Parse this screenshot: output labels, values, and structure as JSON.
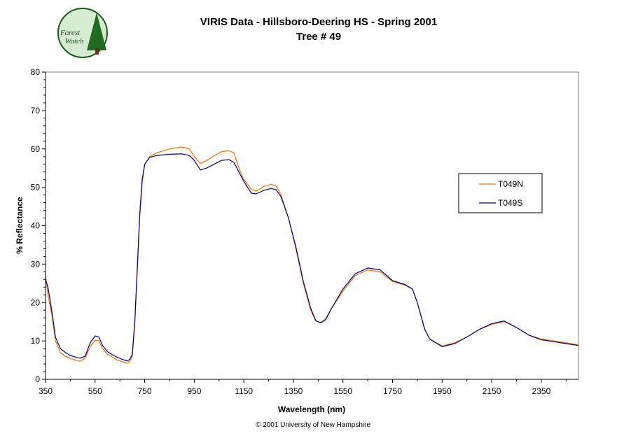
{
  "logo": {
    "line1": "Forest",
    "line2": "Watch"
  },
  "footer": "© 2001 University of New Hampshire",
  "chart_data": {
    "type": "line",
    "title": "VIRIS Data - Hillsboro-Deering HS - Spring 2001",
    "subtitle": "Tree # 49",
    "xlabel": "Wavelength (nm)",
    "ylabel": "% Reflectance",
    "xlim": [
      350,
      2500
    ],
    "ylim": [
      0,
      80
    ],
    "xticks": [
      350,
      550,
      750,
      950,
      1150,
      1350,
      1550,
      1750,
      1950,
      2150,
      2350
    ],
    "yticks": [
      0,
      10,
      20,
      30,
      40,
      50,
      60,
      70,
      80
    ],
    "grid": false,
    "legend_position": "right",
    "series": [
      {
        "name": "T049N",
        "color": "#f07000",
        "points": [
          [
            350,
            27
          ],
          [
            360,
            22
          ],
          [
            375,
            17
          ],
          [
            390,
            10
          ],
          [
            410,
            7
          ],
          [
            430,
            6
          ],
          [
            450,
            5.5
          ],
          [
            470,
            5
          ],
          [
            490,
            4.7
          ],
          [
            510,
            5.5
          ],
          [
            530,
            8.5
          ],
          [
            550,
            10.2
          ],
          [
            565,
            10
          ],
          [
            580,
            8
          ],
          [
            600,
            6.5
          ],
          [
            620,
            5.8
          ],
          [
            640,
            5
          ],
          [
            660,
            4.6
          ],
          [
            680,
            4.2
          ],
          [
            690,
            4.7
          ],
          [
            700,
            6
          ],
          [
            710,
            14
          ],
          [
            720,
            28
          ],
          [
            730,
            42
          ],
          [
            740,
            51
          ],
          [
            750,
            56
          ],
          [
            770,
            58
          ],
          [
            800,
            59
          ],
          [
            850,
            60
          ],
          [
            900,
            60.5
          ],
          [
            930,
            60
          ],
          [
            950,
            58
          ],
          [
            975,
            56.2
          ],
          [
            1000,
            57
          ],
          [
            1030,
            58.2
          ],
          [
            1060,
            59.3
          ],
          [
            1090,
            59.5
          ],
          [
            1110,
            59
          ],
          [
            1130,
            55
          ],
          [
            1150,
            52
          ],
          [
            1180,
            49.5
          ],
          [
            1200,
            49
          ],
          [
            1230,
            50.2
          ],
          [
            1260,
            50.8
          ],
          [
            1280,
            50.4
          ],
          [
            1300,
            48
          ],
          [
            1330,
            42
          ],
          [
            1360,
            34
          ],
          [
            1390,
            25
          ],
          [
            1420,
            18
          ],
          [
            1440,
            15.2
          ],
          [
            1460,
            14.8
          ],
          [
            1480,
            15.8
          ],
          [
            1500,
            18
          ],
          [
            1550,
            23
          ],
          [
            1600,
            27
          ],
          [
            1650,
            28.5
          ],
          [
            1700,
            28
          ],
          [
            1750,
            25.5
          ],
          [
            1800,
            24.5
          ],
          [
            1830,
            23.5
          ],
          [
            1850,
            20
          ],
          [
            1880,
            13
          ],
          [
            1900,
            10.5
          ],
          [
            1950,
            8.7
          ],
          [
            2000,
            9.5
          ],
          [
            2050,
            11
          ],
          [
            2100,
            13
          ],
          [
            2150,
            14.3
          ],
          [
            2200,
            15
          ],
          [
            2250,
            13.5
          ],
          [
            2300,
            11.5
          ],
          [
            2350,
            10.5
          ],
          [
            2400,
            10
          ],
          [
            2450,
            9.5
          ],
          [
            2500,
            9
          ]
        ]
      },
      {
        "name": "T049S",
        "color": "#000080",
        "points": [
          [
            350,
            26
          ],
          [
            360,
            24
          ],
          [
            375,
            18
          ],
          [
            390,
            11
          ],
          [
            410,
            8
          ],
          [
            430,
            7
          ],
          [
            450,
            6.2
          ],
          [
            470,
            5.8
          ],
          [
            490,
            5.5
          ],
          [
            510,
            6
          ],
          [
            530,
            9.5
          ],
          [
            550,
            11.3
          ],
          [
            565,
            11
          ],
          [
            580,
            8.8
          ],
          [
            600,
            7.2
          ],
          [
            620,
            6.4
          ],
          [
            640,
            5.7
          ],
          [
            660,
            5.2
          ],
          [
            680,
            4.8
          ],
          [
            690,
            5.2
          ],
          [
            700,
            6.5
          ],
          [
            710,
            15
          ],
          [
            720,
            29
          ],
          [
            730,
            43
          ],
          [
            740,
            52
          ],
          [
            750,
            56
          ],
          [
            770,
            57.8
          ],
          [
            800,
            58.3
          ],
          [
            850,
            58.6
          ],
          [
            900,
            58.7
          ],
          [
            930,
            58.3
          ],
          [
            950,
            57
          ],
          [
            975,
            54.5
          ],
          [
            1000,
            55
          ],
          [
            1030,
            56
          ],
          [
            1060,
            57
          ],
          [
            1090,
            57.2
          ],
          [
            1110,
            56.5
          ],
          [
            1130,
            54
          ],
          [
            1150,
            51.5
          ],
          [
            1180,
            48.5
          ],
          [
            1200,
            48.3
          ],
          [
            1230,
            49.2
          ],
          [
            1260,
            49.7
          ],
          [
            1280,
            49.4
          ],
          [
            1300,
            47.5
          ],
          [
            1330,
            42
          ],
          [
            1360,
            34.5
          ],
          [
            1390,
            25.5
          ],
          [
            1420,
            18.5
          ],
          [
            1440,
            15.3
          ],
          [
            1460,
            14.7
          ],
          [
            1480,
            15.5
          ],
          [
            1500,
            18
          ],
          [
            1550,
            23.5
          ],
          [
            1600,
            27.5
          ],
          [
            1650,
            29
          ],
          [
            1700,
            28.5
          ],
          [
            1750,
            25.7
          ],
          [
            1800,
            24.7
          ],
          [
            1830,
            23.5
          ],
          [
            1850,
            20
          ],
          [
            1880,
            13
          ],
          [
            1900,
            10.5
          ],
          [
            1950,
            8.5
          ],
          [
            2000,
            9.3
          ],
          [
            2050,
            11
          ],
          [
            2100,
            13
          ],
          [
            2150,
            14.5
          ],
          [
            2200,
            15.2
          ],
          [
            2250,
            13.5
          ],
          [
            2300,
            11.5
          ],
          [
            2350,
            10.3
          ],
          [
            2400,
            9.8
          ],
          [
            2450,
            9.3
          ],
          [
            2500,
            8.8
          ]
        ]
      }
    ]
  }
}
